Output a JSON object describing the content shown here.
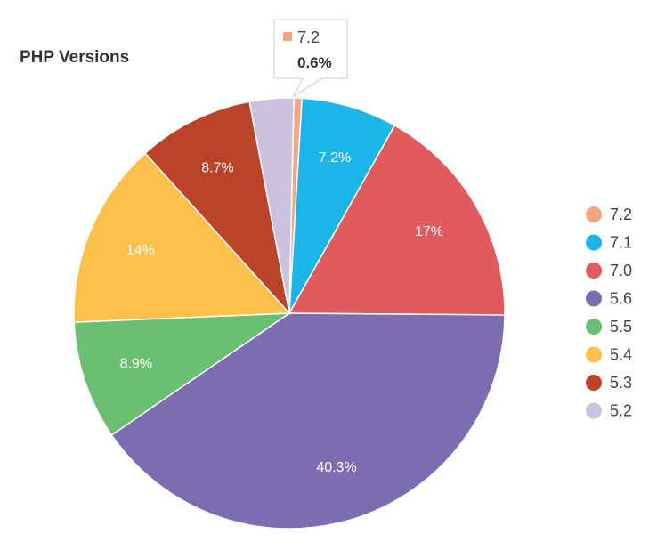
{
  "chart_data": {
    "type": "pie",
    "title": "PHP Versions",
    "categories": [
      "7.2",
      "7.1",
      "7.0",
      "5.6",
      "5.5",
      "5.4",
      "5.3",
      "5.2"
    ],
    "values": [
      0.6,
      7.2,
      17,
      40.3,
      8.9,
      14,
      8.7,
      3.3
    ],
    "labels": [
      "",
      "7.2%",
      "17%",
      "40.3%",
      "8.9%",
      "14%",
      "8.7%",
      ""
    ],
    "colors": [
      "#f4a582",
      "#1cb5e8",
      "#e05a5e",
      "#7d6db0",
      "#6bbf73",
      "#fec04a",
      "#bb4428",
      "#cbc2e0"
    ],
    "legend_position": "right",
    "tooltip": {
      "label": "7.2",
      "value": "0.6%",
      "color": "#f4a582"
    }
  }
}
